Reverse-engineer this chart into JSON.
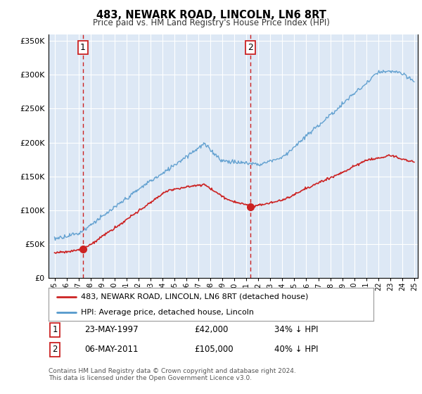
{
  "title": "483, NEWARK ROAD, LINCOLN, LN6 8RT",
  "subtitle": "Price paid vs. HM Land Registry's House Price Index (HPI)",
  "ylim": [
    0,
    360000
  ],
  "yticks": [
    0,
    50000,
    100000,
    150000,
    200000,
    250000,
    300000,
    350000
  ],
  "xlim_start": 1994.5,
  "xlim_end": 2025.3,
  "plot_bg_color": "#dde8f5",
  "grid_color": "#c8d8eb",
  "hpi_line_color": "#5599cc",
  "price_line_color": "#cc2222",
  "vline_color": "#cc2222",
  "marker_color": "#cc2222",
  "purchase1_x": 1997.38,
  "purchase1_y": 42000,
  "purchase1_label": "1",
  "purchase1_date": "23-MAY-1997",
  "purchase1_price": "£42,000",
  "purchase1_pct": "34% ↓ HPI",
  "purchase2_x": 2011.35,
  "purchase2_y": 105000,
  "purchase2_label": "2",
  "purchase2_date": "06-MAY-2011",
  "purchase2_price": "£105,000",
  "purchase2_pct": "40% ↓ HPI",
  "legend_line1": "483, NEWARK ROAD, LINCOLN, LN6 8RT (detached house)",
  "legend_line2": "HPI: Average price, detached house, Lincoln",
  "footer1": "Contains HM Land Registry data © Crown copyright and database right 2024.",
  "footer2": "This data is licensed under the Open Government Licence v3.0."
}
